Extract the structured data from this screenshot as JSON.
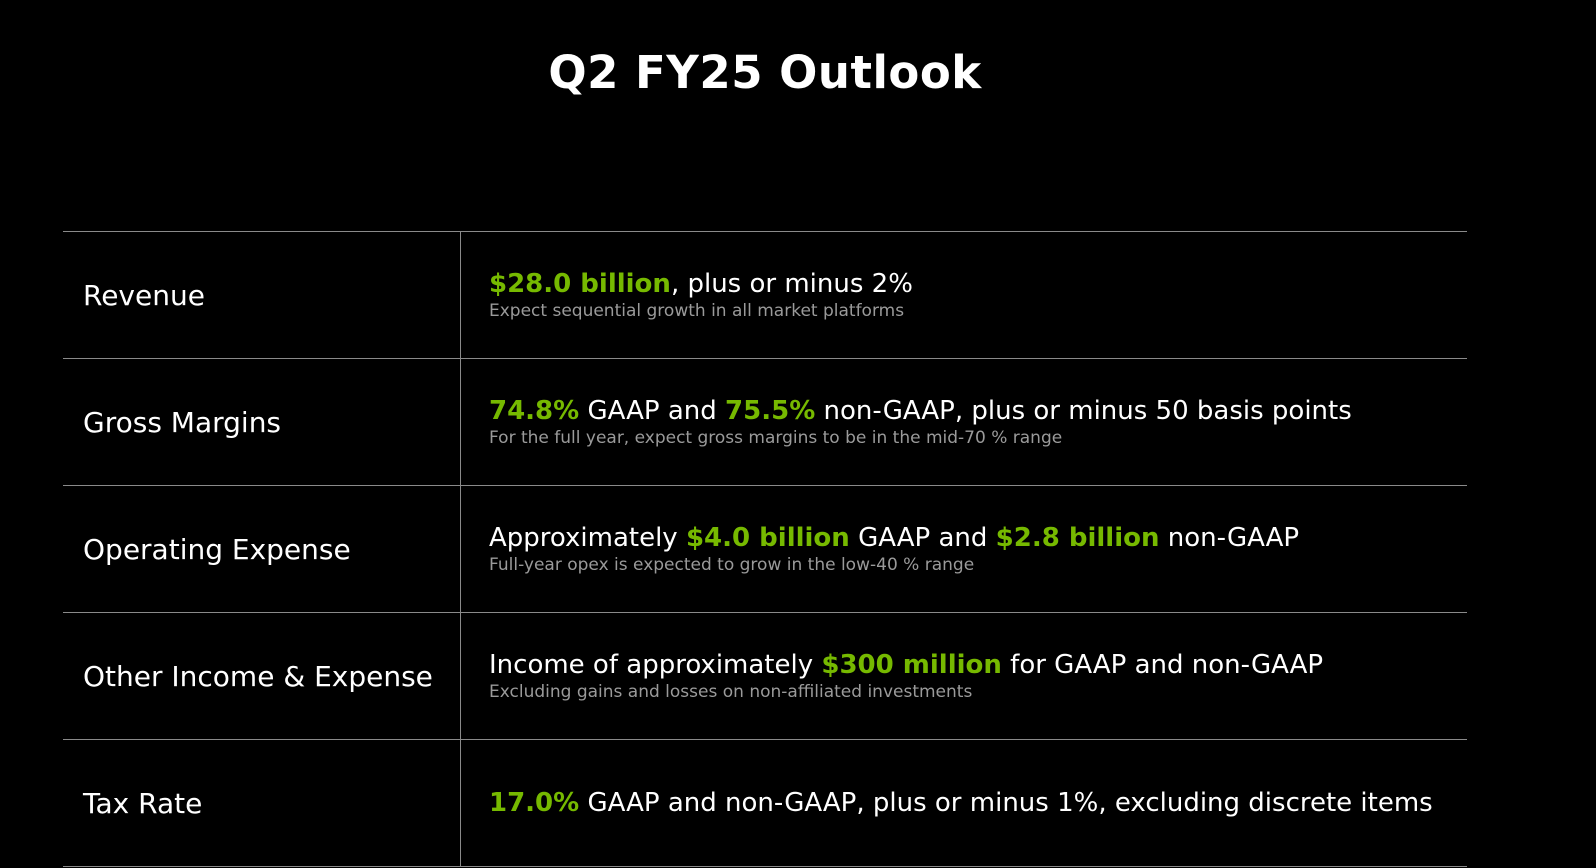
{
  "colors": {
    "background": "#000000",
    "highlight": "#76b900",
    "text": "#ffffff",
    "note": "#9a9a9a"
  },
  "title": "Q2 FY25 Outlook",
  "rows": [
    {
      "label": "Revenue",
      "segments": [
        {
          "text": "$28.0 billion",
          "highlight": true
        },
        {
          "text": ", plus or minus 2%",
          "highlight": false
        }
      ],
      "note": "Expect sequential growth in all market platforms"
    },
    {
      "label": "Gross Margins",
      "segments": [
        {
          "text": "74.8%",
          "highlight": true
        },
        {
          "text": " GAAP and ",
          "highlight": false
        },
        {
          "text": "75.5%",
          "highlight": true
        },
        {
          "text": " non-GAAP, plus or minus 50 basis points",
          "highlight": false
        }
      ],
      "note": "For the full year, expect gross margins to be in the mid-70 % range"
    },
    {
      "label": "Operating Expense",
      "segments": [
        {
          "text": "Approximately ",
          "highlight": false
        },
        {
          "text": "$4.0 billion",
          "highlight": true
        },
        {
          "text": " GAAP and ",
          "highlight": false
        },
        {
          "text": "$2.8 billion",
          "highlight": true
        },
        {
          "text": " non-GAAP",
          "highlight": false
        }
      ],
      "note": "Full-year opex is expected to grow in the low-40 % range"
    },
    {
      "label": "Other Income & Expense",
      "segments": [
        {
          "text": "Income of approximately ",
          "highlight": false
        },
        {
          "text": "$300 million",
          "highlight": true
        },
        {
          "text": " for GAAP and non-GAAP",
          "highlight": false
        }
      ],
      "note": "Excluding gains and losses on non-affiliated investments"
    },
    {
      "label": "Tax Rate",
      "segments": [
        {
          "text": "17.0%",
          "highlight": true
        },
        {
          "text": " GAAP and non-GAAP, plus or minus 1%, excluding discrete items",
          "highlight": false
        }
      ],
      "note": ""
    }
  ]
}
